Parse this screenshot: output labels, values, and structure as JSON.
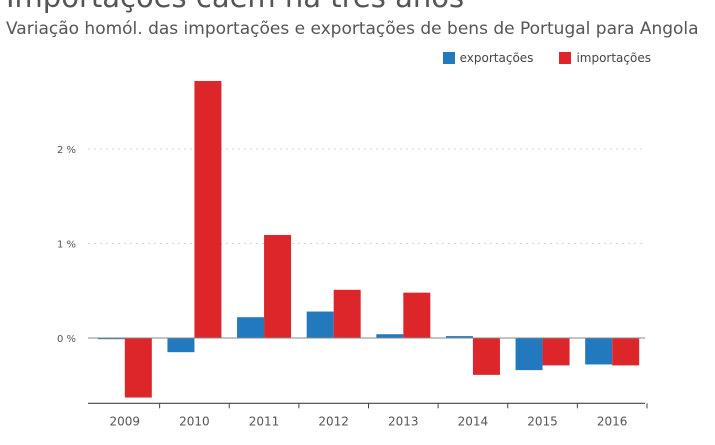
{
  "colors": {
    "exportacoes": "#2379bd",
    "importacoes": "#dc262a",
    "grid": "#d5d5d5",
    "axis": "#888888"
  },
  "chart_data": {
    "type": "bar",
    "title": "Importações caem há três anos",
    "subtitle": "Variação homól. das importações e exportações de bens de Portugal para Angola",
    "categories": [
      "2009",
      "2010",
      "2011",
      "2012",
      "2013",
      "2014",
      "2015",
      "2016"
    ],
    "series": [
      {
        "name": "exportações",
        "values": [
          -0.01,
          -0.15,
          0.22,
          0.28,
          0.04,
          0.02,
          -0.34,
          -0.28
        ]
      },
      {
        "name": "importações",
        "values": [
          -0.63,
          2.72,
          1.09,
          0.51,
          0.48,
          -0.39,
          -0.29,
          -0.29
        ]
      }
    ],
    "yticks": [
      {
        "value": 0,
        "label": "0 %"
      },
      {
        "value": 1,
        "label": "1 %"
      },
      {
        "value": 2,
        "label": "2 %"
      }
    ],
    "ylim": [
      -0.67,
      2.75
    ],
    "xlabel": "",
    "ylabel": "",
    "legend": "top-right",
    "grid": true
  }
}
